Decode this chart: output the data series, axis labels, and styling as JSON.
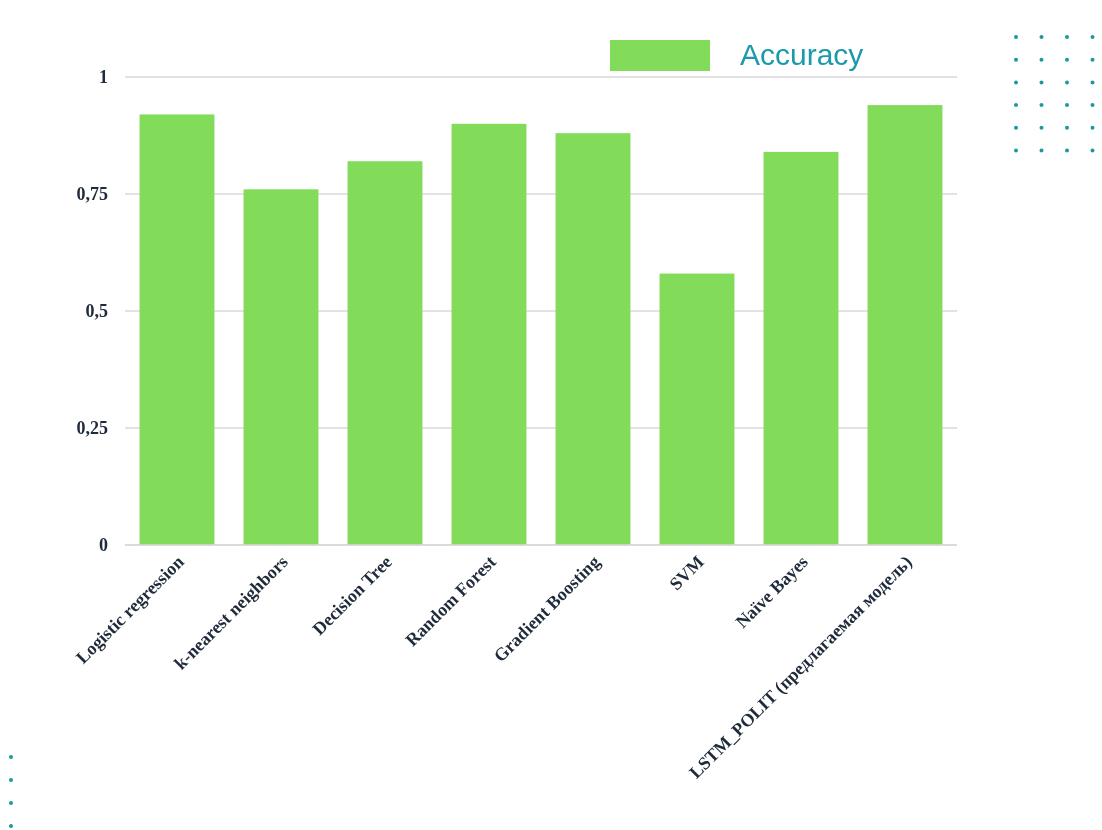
{
  "chart_data": {
    "type": "bar",
    "categories": [
      "Logistic regression",
      "k-nearest neighbors",
      "Decision Tree",
      "Random Forest",
      "Gradient Boosting",
      "SVM",
      "Naïve Bayes",
      "LSTM_POLIT (предлагаемая модель)"
    ],
    "series": [
      {
        "name": "Accuracy",
        "color": "#82dc5a",
        "values": [
          0.92,
          0.76,
          0.82,
          0.9,
          0.88,
          0.58,
          0.84,
          0.94
        ]
      }
    ],
    "ylim": [
      0,
      1
    ],
    "yticks": [
      0,
      {
        "value": 0.25,
        "label": "0,25"
      },
      {
        "value": 0.5,
        "label": "0,5"
      },
      {
        "value": 0.75,
        "label": "0,75"
      },
      1
    ],
    "grid": "y",
    "legend": "top right"
  }
}
